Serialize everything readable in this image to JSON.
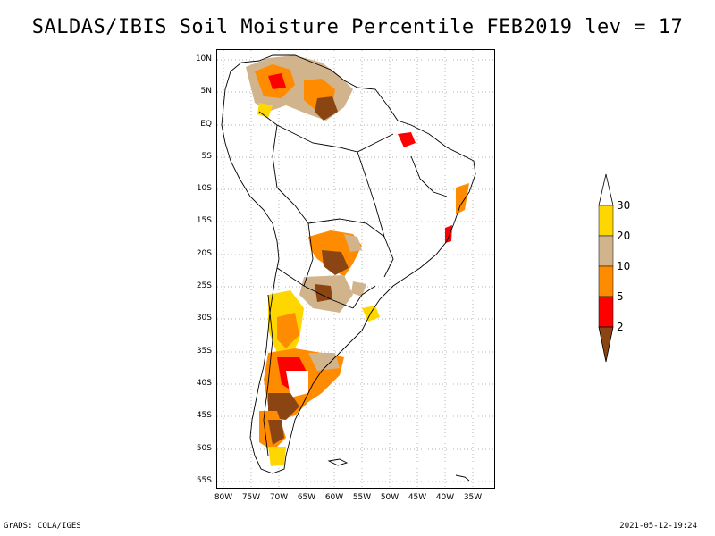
{
  "title": "SALDAS/IBIS Soil Moisture Percentile FEB2019 lev = 17",
  "lat_labels": [
    "10N",
    "5N",
    "EQ",
    "5S",
    "10S",
    "15S",
    "20S",
    "25S",
    "30S",
    "35S",
    "40S",
    "45S",
    "50S",
    "55S"
  ],
  "lon_labels": [
    "80W",
    "75W",
    "70W",
    "65W",
    "60W",
    "55W",
    "50W",
    "45W",
    "40W",
    "35W"
  ],
  "legend": {
    "labels": [
      "30",
      "20",
      "10",
      "5",
      "2"
    ],
    "colors": {
      "above30": "#ffffff",
      "20-30": "#ffd700",
      "10-20": "#d2b48c",
      "5-10": "#ff8c00",
      "2-5": "#ff0000",
      "below2": "#8b4513"
    }
  },
  "footer": {
    "left": "GrADS: COLA/IGES",
    "right": "2021-05-12-19:24"
  }
}
